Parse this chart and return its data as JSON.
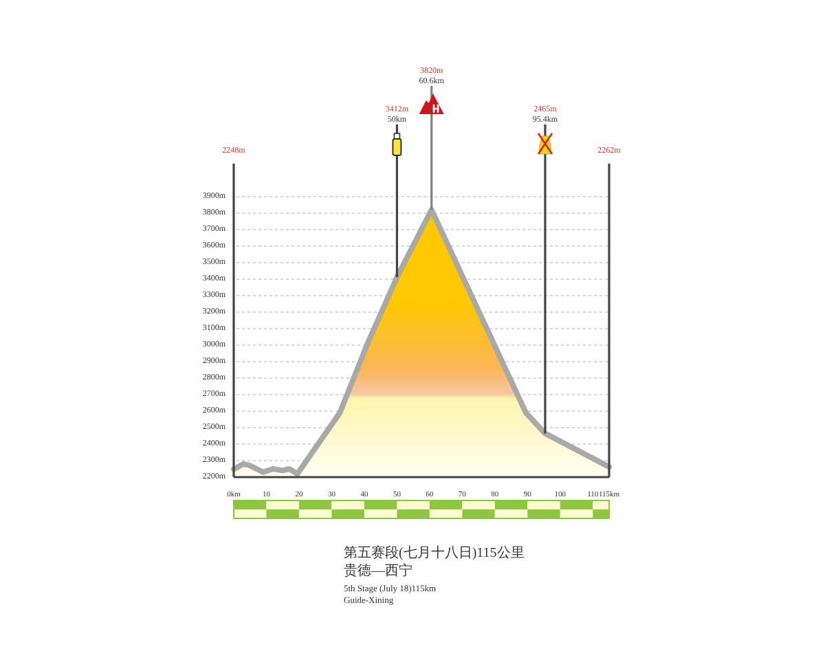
{
  "chart_data": {
    "type": "area",
    "title": "第五赛段(七月十八日)115公里",
    "subtitle": "贵德—西宁",
    "x": [
      0,
      3,
      5,
      9,
      12,
      15,
      17,
      19.5,
      32.5,
      41,
      50,
      60.6,
      89.5,
      95.4,
      115
    ],
    "values": [
      2248,
      2280,
      2270,
      2230,
      2250,
      2240,
      2250,
      2220,
      2590,
      3010,
      3412,
      3820,
      2590,
      2465,
      2262
    ],
    "color": "#ffc800",
    "xlim": [
      0,
      115
    ],
    "xticks": [
      {
        "value": 0,
        "label": "0km"
      },
      10,
      20,
      30,
      40,
      50,
      60,
      70,
      80,
      90,
      100,
      110,
      {
        "value": 115,
        "label": "115km"
      }
    ],
    "ylim": [
      2200,
      4100
    ],
    "yticks": [
      {
        "value": 2200,
        "label": "2200m"
      },
      {
        "value": 2300,
        "label": "2300m"
      },
      {
        "value": 2400,
        "label": "2400m"
      },
      {
        "value": 2500,
        "label": "2500m"
      },
      {
        "value": 2600,
        "label": "2600m"
      },
      {
        "value": 2700,
        "label": "2700m"
      },
      {
        "value": 2800,
        "label": "2800m"
      },
      {
        "value": 2900,
        "label": "2900m"
      },
      {
        "value": 3000,
        "label": "3000m"
      },
      {
        "value": 3100,
        "label": "3100m"
      },
      {
        "value": 3200,
        "label": "3200m"
      },
      {
        "value": 3300,
        "label": "3300m"
      },
      {
        "value": 3400,
        "label": "3400m"
      },
      {
        "value": 3500,
        "label": "3500m"
      },
      {
        "value": 3600,
        "label": "3600m"
      },
      {
        "value": 3700,
        "label": "3700m"
      },
      {
        "value": 3800,
        "label": "3800m"
      },
      {
        "value": 3900,
        "label": "3900m"
      }
    ],
    "grid": "y",
    "annotations": [
      "2248m",
      {
        "text": "3412m\n50km",
        "x": 50,
        "y": 3412
      },
      {
        "text": "3820m\n60.6km",
        "x": 60.6,
        "y": 3820
      },
      {
        "text": "2465m\n95.4km",
        "x": 95.4,
        "y": 2465
      },
      "2262m",
      "5th Stage (July 18)115km",
      "Guide-Xining"
    ]
  }
}
